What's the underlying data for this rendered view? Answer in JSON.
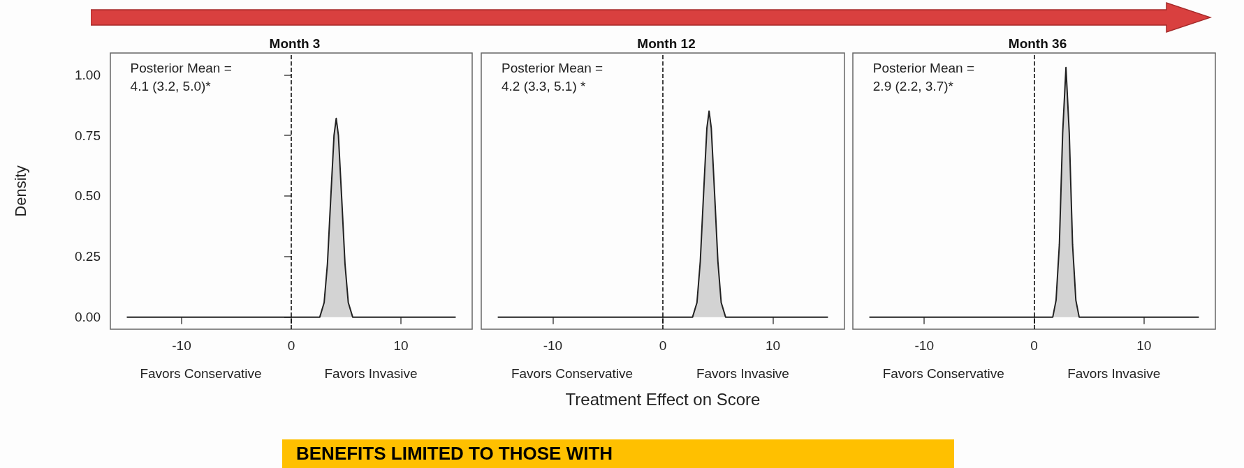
{
  "chart_data": [
    {
      "type": "area",
      "title": "Month 3",
      "ylabel": "Density",
      "series": [
        {
          "color": "#c0c0c0",
          "x": [
            -15,
            2.6,
            3.0,
            3.3,
            3.6,
            3.9,
            4.1,
            4.3,
            4.6,
            4.9,
            5.2,
            5.6,
            15
          ],
          "values": [
            0,
            0,
            0.06,
            0.22,
            0.49,
            0.75,
            0.82,
            0.75,
            0.49,
            0.22,
            0.06,
            0,
            0
          ]
        }
      ],
      "xlim": [
        -16.5,
        16.5
      ],
      "xticks": [
        -10,
        0,
        10
      ],
      "ylim": [
        -0.05,
        1.09
      ],
      "yticks": [
        {
          "value": 0,
          "label": "0.00"
        },
        {
          "value": 0.25,
          "label": "0.25"
        },
        {
          "value": 0.5,
          "label": "0.50"
        },
        {
          "value": 0.75,
          "label": "0.75"
        },
        {
          "value": 1,
          "label": "1.00"
        }
      ],
      "ref_lines": [
        {
          "axis": "x",
          "value": 0,
          "line_style": "dashed"
        }
      ],
      "annotations": [
        "Posterior Mean =\n4.1 (3.2, 5.0)*",
        "Favors Conservative",
        "Favors Invasive"
      ]
    },
    {
      "type": "area",
      "title": "Month 12",
      "xlabel": "Treatment Effect on Score",
      "series": [
        {
          "color": "#c0c0c0",
          "x": [
            -15,
            2.7,
            3.1,
            3.4,
            3.7,
            4.0,
            4.2,
            4.4,
            4.7,
            5.0,
            5.3,
            5.7,
            15
          ],
          "values": [
            0,
            0,
            0.06,
            0.23,
            0.51,
            0.78,
            0.85,
            0.78,
            0.51,
            0.23,
            0.06,
            0,
            0
          ]
        }
      ],
      "xlim": [
        -16.5,
        16.5
      ],
      "xticks": [
        -10,
        0,
        10
      ],
      "ylim": [
        -0.05,
        1.09
      ],
      "tick_labels": "x",
      "ref_lines": [
        {
          "axis": "x",
          "value": 0,
          "line_style": "dashed"
        }
      ],
      "annotations": [
        "Posterior Mean =\n4.2 (3.3, 5.1) *",
        "Favors Conservative",
        "Favors Invasive"
      ]
    },
    {
      "type": "area",
      "title": "Month 36",
      "series": [
        {
          "color": "#c0c0c0",
          "x": [
            -15,
            1.7,
            2.0,
            2.3,
            2.6,
            2.9,
            3.2,
            3.5,
            3.8,
            4.1,
            15
          ],
          "values": [
            0,
            0,
            0.07,
            0.3,
            0.76,
            1.03,
            0.76,
            0.3,
            0.07,
            0,
            0
          ]
        }
      ],
      "xlim": [
        -16.5,
        16.5
      ],
      "xticks": [
        -10,
        0,
        10
      ],
      "ylim": [
        -0.05,
        1.09
      ],
      "tick_labels": "x",
      "ref_lines": [
        {
          "axis": "x",
          "value": 0,
          "line_style": "dashed"
        }
      ],
      "annotations": [
        "Posterior Mean =\n2.9 (2.2, 3.7)*",
        "Favors Conservative",
        "Favors Invasive"
      ]
    },
    {
      "type": "other",
      "annotations": [
        "BENEFITS LIMITED TO THOSE WITH"
      ]
    }
  ]
}
